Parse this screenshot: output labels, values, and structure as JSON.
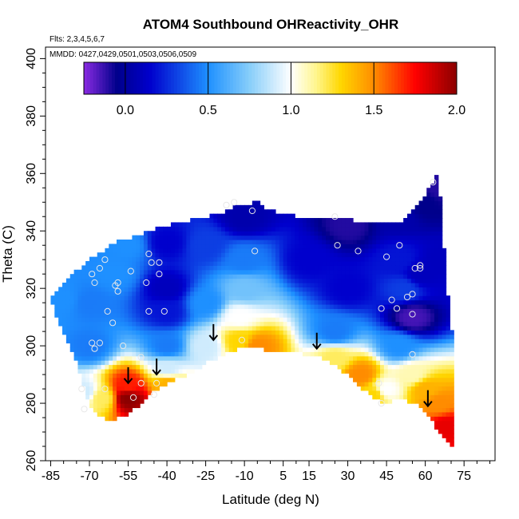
{
  "chart_data": {
    "type": "heatmap",
    "title": "ATOM4 Southbound OHReactivity_OHR",
    "subtitle_flights": "Flts: 2,3,4,5,6,7",
    "subtitle_dates": "MMDD: 0427,0429,0501,0503,0506,0509",
    "xlabel": "Latitude (deg N)",
    "ylabel": "Theta (C)",
    "xlim": [
      -87,
      87
    ],
    "ylim": [
      260,
      404
    ],
    "x_ticks": [
      -85,
      -70,
      -55,
      -40,
      -25,
      -10,
      5,
      15,
      30,
      45,
      60,
      75
    ],
    "x_tick_labels": [
      "-85",
      "-70",
      "-55",
      "-40",
      "-25",
      "-10",
      "5",
      "15",
      "30",
      "45",
      "60",
      "75"
    ],
    "y_ticks": [
      260,
      280,
      300,
      320,
      340,
      360,
      380,
      400
    ],
    "y_tick_labels": [
      "260",
      "280",
      "300",
      "320",
      "340",
      "360",
      "380",
      "400"
    ],
    "colorbar": {
      "range": [
        -0.25,
        2.0
      ],
      "ticks": [
        0.0,
        0.5,
        1.0,
        1.5,
        2.0
      ],
      "tick_labels": [
        "0.0",
        "0.5",
        "1.0",
        "1.5",
        "2.0"
      ],
      "colors": [
        "#8a2be2",
        "#00008b",
        "#0000cd",
        "#1e90ff",
        "#87cefa",
        "#ffffff",
        "#fff68f",
        "#ffd700",
        "#ff8c00",
        "#ff0000",
        "#8b0000"
      ]
    },
    "grid": false,
    "domain_top": [
      [
        -85,
        317
      ],
      [
        -80,
        322
      ],
      [
        -75,
        326
      ],
      [
        -70,
        330
      ],
      [
        -65,
        333
      ],
      [
        -60,
        336
      ],
      [
        -50,
        339
      ],
      [
        -40,
        342
      ],
      [
        -30,
        344
      ],
      [
        -20,
        346
      ],
      [
        -12,
        349
      ],
      [
        -5,
        350
      ],
      [
        0,
        347
      ],
      [
        10,
        345
      ],
      [
        20,
        344
      ],
      [
        30,
        344
      ],
      [
        40,
        343
      ],
      [
        50,
        343
      ],
      [
        55,
        347
      ],
      [
        60,
        353
      ],
      [
        65,
        360
      ],
      [
        68,
        326
      ],
      [
        70,
        305
      ]
    ],
    "domain_bottom": [
      [
        -85,
        317
      ],
      [
        -82,
        308
      ],
      [
        -78,
        300
      ],
      [
        -74,
        292
      ],
      [
        -72,
        285
      ],
      [
        -70,
        280
      ],
      [
        -66,
        276
      ],
      [
        -62,
        274
      ],
      [
        -56,
        276
      ],
      [
        -50,
        280
      ],
      [
        -45,
        284
      ],
      [
        -40,
        287
      ],
      [
        -32,
        290
      ],
      [
        -25,
        294
      ],
      [
        -18,
        297
      ],
      [
        -10,
        300
      ],
      [
        -4,
        299
      ],
      [
        5,
        298
      ],
      [
        15,
        297
      ],
      [
        22,
        295
      ],
      [
        30,
        290
      ],
      [
        36,
        285
      ],
      [
        40,
        282
      ],
      [
        44,
        280
      ],
      [
        50,
        282
      ],
      [
        58,
        279
      ],
      [
        64,
        272
      ],
      [
        70,
        265
      ]
    ],
    "value_nodes": [
      [
        -10,
        345,
        0.05
      ],
      [
        -10,
        330,
        0.45
      ],
      [
        -10,
        320,
        0.7
      ],
      [
        -12,
        310,
        1.0
      ],
      [
        -12,
        302,
        1.3
      ],
      [
        -5,
        300,
        1.5
      ],
      [
        30,
        342,
        -0.1
      ],
      [
        30,
        320,
        0.15
      ],
      [
        25,
        305,
        0.45
      ],
      [
        25,
        296,
        1.2
      ],
      [
        35,
        290,
        1.5
      ],
      [
        -40,
        336,
        0.15
      ],
      [
        -40,
        320,
        0.1
      ],
      [
        -40,
        312,
        0.2
      ],
      [
        -40,
        300,
        0.45
      ],
      [
        -40,
        292,
        0.9
      ],
      [
        -40,
        287,
        1.4
      ],
      [
        -55,
        286,
        1.7
      ],
      [
        -55,
        282,
        2.0
      ],
      [
        -65,
        282,
        1.2
      ],
      [
        -72,
        284,
        0.9
      ],
      [
        -70,
        300,
        0.45
      ],
      [
        -70,
        315,
        0.45
      ],
      [
        -80,
        316,
        0.5
      ],
      [
        -60,
        325,
        0.5
      ],
      [
        -55,
        335,
        0.5
      ],
      [
        50,
        345,
        0.05
      ],
      [
        50,
        330,
        0.2
      ],
      [
        52,
        320,
        0.3
      ],
      [
        55,
        310,
        -0.15
      ],
      [
        58,
        325,
        0.1
      ],
      [
        60,
        350,
        -0.05
      ],
      [
        50,
        300,
        0.5
      ],
      [
        55,
        290,
        1.1
      ],
      [
        60,
        285,
        1.4
      ],
      [
        65,
        280,
        1.5
      ],
      [
        68,
        272,
        1.8
      ],
      [
        45,
        285,
        1.0
      ],
      [
        40,
        283,
        1.3
      ],
      [
        15,
        330,
        0.15
      ],
      [
        -25,
        335,
        0.3
      ],
      [
        -25,
        315,
        0.5
      ],
      [
        -25,
        300,
        0.9
      ],
      [
        -85,
        317,
        0.5
      ],
      [
        65,
        355,
        -0.1
      ],
      [
        67,
        330,
        0.1
      ]
    ],
    "sample_points": [
      [
        -69,
        325
      ],
      [
        -68,
        322
      ],
      [
        -66,
        327
      ],
      [
        -64,
        330
      ],
      [
        -60,
        321
      ],
      [
        -59,
        319
      ],
      [
        -63,
        312
      ],
      [
        -61,
        308
      ],
      [
        -69,
        301
      ],
      [
        -68,
        299
      ],
      [
        -66,
        301
      ],
      [
        -57,
        300
      ],
      [
        -59,
        322
      ],
      [
        -54,
        326
      ],
      [
        -46,
        329
      ],
      [
        -47,
        332
      ],
      [
        -43,
        329
      ],
      [
        -43,
        325
      ],
      [
        -41,
        312
      ],
      [
        -48,
        322
      ],
      [
        -47,
        312
      ],
      [
        -50,
        296
      ],
      [
        -44,
        287
      ],
      [
        -45,
        283
      ],
      [
        -53,
        282
      ],
      [
        -50,
        287
      ],
      [
        -64,
        285
      ],
      [
        -73,
        285
      ],
      [
        -72,
        278
      ],
      [
        -17,
        349
      ],
      [
        -14,
        350
      ],
      [
        -7,
        347
      ],
      [
        -6,
        333
      ],
      [
        -11,
        302
      ],
      [
        25,
        345
      ],
      [
        26,
        335
      ],
      [
        34,
        333
      ],
      [
        45,
        331
      ],
      [
        50,
        335
      ],
      [
        43,
        313
      ],
      [
        47,
        316
      ],
      [
        49,
        313
      ],
      [
        53,
        317
      ],
      [
        55,
        318
      ],
      [
        56,
        327
      ],
      [
        58,
        328
      ],
      [
        58,
        327
      ],
      [
        55,
        311
      ],
      [
        55,
        297
      ],
      [
        42,
        287
      ],
      [
        43,
        280
      ],
      [
        63,
        357
      ]
    ],
    "arrows": [
      [
        -55,
        287
      ],
      [
        -44,
        290
      ],
      [
        -22,
        302
      ],
      [
        18,
        299
      ],
      [
        61,
        279
      ]
    ]
  }
}
